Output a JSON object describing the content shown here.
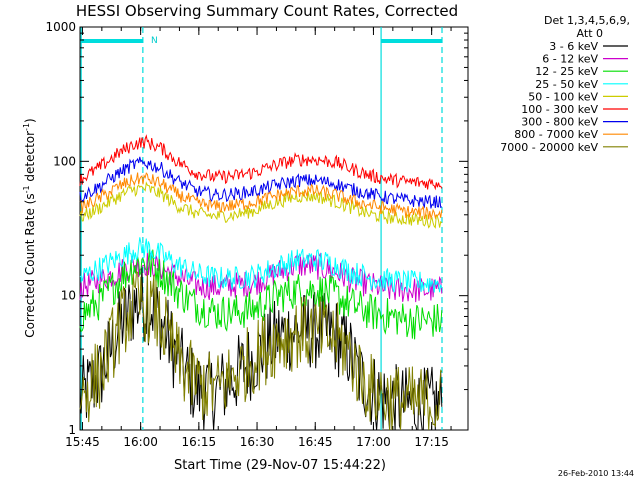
{
  "chart_data": {
    "type": "line",
    "title": "HESSI Observing Summary Count Rates, Corrected",
    "xlabel": "Start Time (29-Nov-07 15:44:22)",
    "ylabel_main": "Corrected Count Rate (s",
    "ylabel_sup1": "-1",
    "ylabel_mid": " detector",
    "ylabel_sup2": "-1",
    "ylabel_end": ")",
    "x_range_minutes": [
      0,
      100
    ],
    "y_scale": "log",
    "ylim": [
      1,
      1000
    ],
    "x_ticks": [
      {
        "label": "15:45",
        "m": 0.63
      },
      {
        "label": "16:00",
        "m": 15.63
      },
      {
        "label": "16:15",
        "m": 30.63
      },
      {
        "label": "16:30",
        "m": 45.63
      },
      {
        "label": "16:45",
        "m": 60.63
      },
      {
        "label": "17:00",
        "m": 75.63
      },
      {
        "label": "17:15",
        "m": 90.63
      }
    ],
    "y_ticks": [
      {
        "label": "1",
        "v": 1
      },
      {
        "label": "10",
        "v": 10
      },
      {
        "label": "100",
        "v": 100
      },
      {
        "label": "1000",
        "v": 1000
      }
    ],
    "legend": {
      "header1": "Det 1,3,4,5,6,9,",
      "header2": "Att 0",
      "placement": "right"
    },
    "series": [
      {
        "name": "3 - 6 keV",
        "color": "#000000",
        "values": [
          [
            0,
            1.7
          ],
          [
            5,
            2.5
          ],
          [
            8,
            4
          ],
          [
            11,
            6.5
          ],
          [
            14,
            8.5
          ],
          [
            16,
            9
          ],
          [
            19,
            8
          ],
          [
            22,
            5.5
          ],
          [
            26,
            3
          ],
          [
            30,
            2
          ],
          [
            35,
            1.9
          ],
          [
            40,
            2.5
          ],
          [
            45,
            3.5
          ],
          [
            51,
            5
          ],
          [
            56,
            5.5
          ],
          [
            61,
            5.5
          ],
          [
            66,
            5
          ],
          [
            69,
            4
          ],
          [
            72,
            2.5
          ],
          [
            75,
            2
          ],
          [
            80,
            1.6
          ],
          [
            85,
            1.5
          ],
          [
            90,
            1.5
          ],
          [
            95,
            1.6
          ]
        ]
      },
      {
        "name": "6 - 12 keV",
        "color": "#cc00cc",
        "values": [
          [
            0,
            11.5
          ],
          [
            5,
            13
          ],
          [
            10,
            15
          ],
          [
            14,
            17
          ],
          [
            17,
            17.5
          ],
          [
            21,
            16
          ],
          [
            25,
            14
          ],
          [
            30,
            12
          ],
          [
            35,
            11.5
          ],
          [
            40,
            12
          ],
          [
            45,
            12.5
          ],
          [
            51,
            15
          ],
          [
            56,
            17
          ],
          [
            61,
            16.5
          ],
          [
            66,
            15
          ],
          [
            70,
            13
          ],
          [
            75,
            12
          ],
          [
            80,
            11
          ],
          [
            85,
            11
          ],
          [
            90,
            11
          ],
          [
            95,
            11
          ]
        ]
      },
      {
        "name": "12 - 25 keV",
        "color": "#00dd00",
        "values": [
          [
            0,
            7
          ],
          [
            5,
            9
          ],
          [
            10,
            13
          ],
          [
            14,
            17
          ],
          [
            17,
            18
          ],
          [
            21,
            15
          ],
          [
            25,
            11
          ],
          [
            30,
            8.5
          ],
          [
            35,
            7.5
          ],
          [
            40,
            7.5
          ],
          [
            45,
            8
          ],
          [
            51,
            10
          ],
          [
            56,
            11
          ],
          [
            61,
            11
          ],
          [
            66,
            10
          ],
          [
            70,
            8.5
          ],
          [
            75,
            7.5
          ],
          [
            80,
            7
          ],
          [
            85,
            6.5
          ],
          [
            90,
            6.5
          ],
          [
            95,
            6.5
          ]
        ]
      },
      {
        "name": "25 - 50 keV",
        "color": "#00ffff",
        "values": [
          [
            0,
            13.5
          ],
          [
            5,
            16
          ],
          [
            10,
            19
          ],
          [
            14,
            22
          ],
          [
            17,
            23
          ],
          [
            21,
            20
          ],
          [
            25,
            17
          ],
          [
            30,
            14.5
          ],
          [
            35,
            13.5
          ],
          [
            40,
            13.5
          ],
          [
            45,
            14
          ],
          [
            51,
            16.5
          ],
          [
            56,
            18.5
          ],
          [
            61,
            18.5
          ],
          [
            66,
            17
          ],
          [
            70,
            15
          ],
          [
            75,
            13.5
          ],
          [
            80,
            13
          ],
          [
            85,
            12.5
          ],
          [
            90,
            12.5
          ],
          [
            95,
            12.5
          ]
        ]
      },
      {
        "name": "50 - 100 keV",
        "color": "#cccc00",
        "values": [
          [
            0,
            38
          ],
          [
            5,
            45
          ],
          [
            10,
            55
          ],
          [
            14,
            62
          ],
          [
            17,
            63
          ],
          [
            21,
            57
          ],
          [
            25,
            47
          ],
          [
            30,
            41
          ],
          [
            35,
            39
          ],
          [
            40,
            40
          ],
          [
            45,
            43
          ],
          [
            51,
            50
          ],
          [
            56,
            55
          ],
          [
            61,
            55
          ],
          [
            66,
            50
          ],
          [
            70,
            45
          ],
          [
            75,
            40
          ],
          [
            80,
            38
          ],
          [
            85,
            37
          ],
          [
            90,
            36
          ],
          [
            95,
            36
          ]
        ]
      },
      {
        "name": "100 - 300 keV",
        "color": "#ff0000",
        "values": [
          [
            0,
            73
          ],
          [
            5,
            90
          ],
          [
            10,
            115
          ],
          [
            14,
            135
          ],
          [
            17,
            140
          ],
          [
            21,
            125
          ],
          [
            25,
            100
          ],
          [
            30,
            82
          ],
          [
            35,
            76
          ],
          [
            40,
            78
          ],
          [
            45,
            83
          ],
          [
            51,
            95
          ],
          [
            56,
            103
          ],
          [
            61,
            103
          ],
          [
            66,
            98
          ],
          [
            70,
            88
          ],
          [
            75,
            78
          ],
          [
            80,
            73
          ],
          [
            85,
            70
          ],
          [
            90,
            69
          ],
          [
            95,
            69
          ]
        ]
      },
      {
        "name": "300 - 800 keV",
        "color": "#0000ee",
        "values": [
          [
            0,
            54
          ],
          [
            5,
            65
          ],
          [
            10,
            82
          ],
          [
            14,
            95
          ],
          [
            17,
            98
          ],
          [
            21,
            88
          ],
          [
            25,
            72
          ],
          [
            30,
            60
          ],
          [
            35,
            56
          ],
          [
            40,
            57
          ],
          [
            45,
            60
          ],
          [
            51,
            67
          ],
          [
            56,
            72
          ],
          [
            61,
            72
          ],
          [
            66,
            68
          ],
          [
            70,
            62
          ],
          [
            75,
            57
          ],
          [
            80,
            53
          ],
          [
            85,
            51
          ],
          [
            90,
            50
          ],
          [
            95,
            50
          ]
        ]
      },
      {
        "name": "800 - 7000 keV",
        "color": "#ff8800",
        "values": [
          [
            0,
            45
          ],
          [
            5,
            53
          ],
          [
            10,
            65
          ],
          [
            14,
            73
          ],
          [
            17,
            75
          ],
          [
            21,
            68
          ],
          [
            25,
            57
          ],
          [
            30,
            49
          ],
          [
            35,
            46
          ],
          [
            40,
            47
          ],
          [
            45,
            50
          ],
          [
            51,
            56
          ],
          [
            56,
            60
          ],
          [
            61,
            60
          ],
          [
            66,
            56
          ],
          [
            70,
            51
          ],
          [
            75,
            47
          ],
          [
            80,
            44
          ],
          [
            85,
            42
          ],
          [
            90,
            41
          ],
          [
            95,
            41
          ]
        ]
      },
      {
        "name": "7000 - 20000 keV",
        "color": "#808000",
        "values": [
          [
            0,
            1.8
          ],
          [
            5,
            2.6
          ],
          [
            8,
            4.2
          ],
          [
            11,
            6.5
          ],
          [
            14,
            8.2
          ],
          [
            16,
            8.8
          ],
          [
            19,
            7.8
          ],
          [
            22,
            5.3
          ],
          [
            26,
            3
          ],
          [
            30,
            2.2
          ],
          [
            35,
            2
          ],
          [
            40,
            2.6
          ],
          [
            45,
            3.5
          ],
          [
            51,
            4.8
          ],
          [
            56,
            5.3
          ],
          [
            61,
            5.3
          ],
          [
            66,
            4.8
          ],
          [
            69,
            4
          ],
          [
            72,
            2.6
          ],
          [
            75,
            2
          ],
          [
            80,
            1.7
          ],
          [
            85,
            1.6
          ],
          [
            90,
            1.6
          ],
          [
            95,
            1.6
          ]
        ]
      }
    ],
    "annotations": {
      "saa_label": "N",
      "solid_verticals_m": [
        0.3,
        77.6
      ],
      "dashed_verticals_m": [
        16.2,
        93.3
      ],
      "cyan_top_bars_m": [
        [
          0.3,
          16.2
        ],
        [
          77.6,
          93.3
        ]
      ]
    },
    "timestamp": "26-Feb-2010 13:44"
  }
}
